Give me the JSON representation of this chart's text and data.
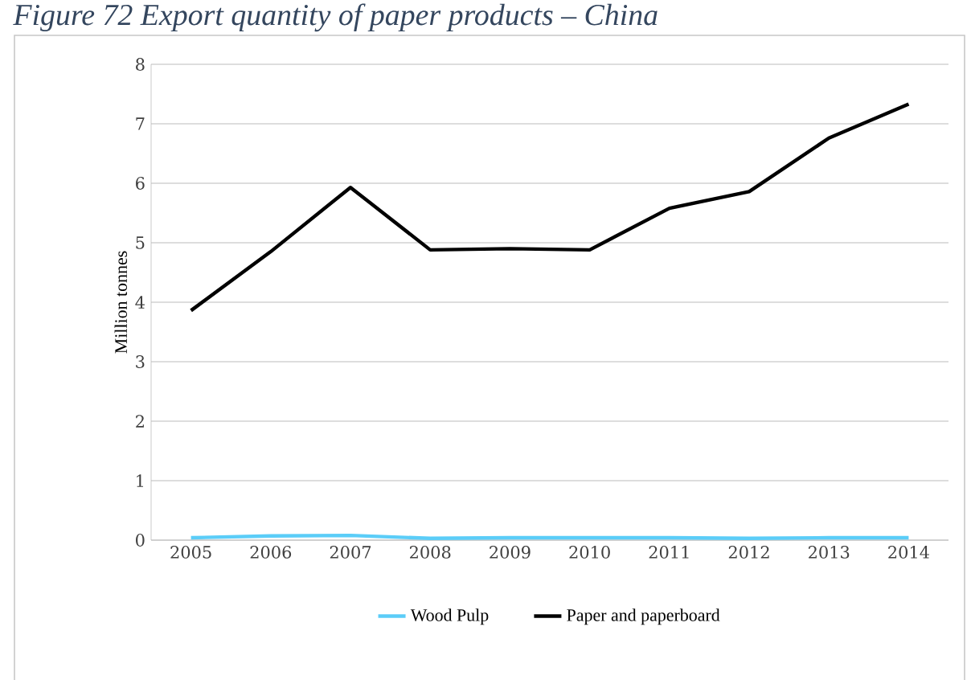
{
  "chart_data": {
    "type": "line",
    "title": "Figure 72 Export quantity of paper products – China",
    "ylabel": "Million tonnes",
    "categories": [
      "2005",
      "2006",
      "2007",
      "2008",
      "2009",
      "2010",
      "2011",
      "2012",
      "2013",
      "2014"
    ],
    "series": [
      {
        "name": "Wood Pulp",
        "color": "#5bcdf8",
        "values": [
          0.04,
          0.07,
          0.08,
          0.03,
          0.04,
          0.04,
          0.04,
          0.03,
          0.04,
          0.04
        ]
      },
      {
        "name": "Paper and paperboard",
        "color": "#000000",
        "values": [
          3.86,
          4.85,
          5.93,
          4.88,
          4.9,
          4.88,
          5.58,
          5.86,
          6.76,
          7.33
        ]
      }
    ],
    "ylim": [
      0,
      8
    ],
    "yticks": [
      0,
      1,
      2,
      3,
      4,
      5,
      6,
      7,
      8
    ],
    "grid": "y",
    "legend": "bottom",
    "marker": "none",
    "line_style": "solid"
  }
}
